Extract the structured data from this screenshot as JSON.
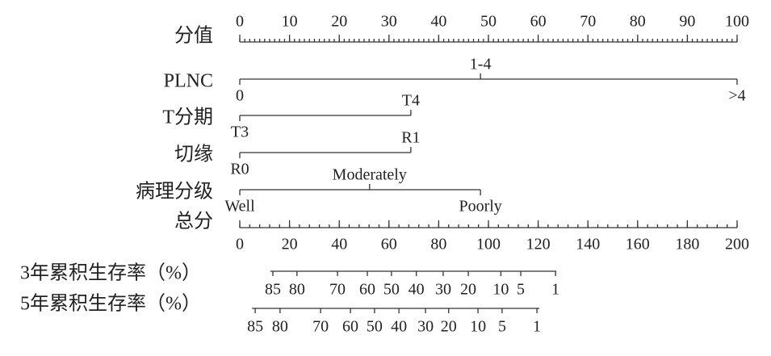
{
  "chart_data": {
    "type": "nomogram",
    "points_axis": {
      "name": "分值",
      "xlim": [
        0,
        100
      ],
      "xticks": [
        0,
        10,
        20,
        30,
        40,
        50,
        60,
        70,
        80,
        90,
        100
      ]
    },
    "variables": [
      {
        "name": "PLNC",
        "levels": [
          {
            "label": "0",
            "points": 0
          },
          {
            "label": "1-4",
            "points": 48.4
          },
          {
            "label": ">4",
            "points": 100
          }
        ]
      },
      {
        "name": "T分期",
        "levels": [
          {
            "label": "T3",
            "points": 0
          },
          {
            "label": "T4",
            "points": 34.4
          }
        ]
      },
      {
        "name": "切缘",
        "levels": [
          {
            "label": "R0",
            "points": 0
          },
          {
            "label": "R1",
            "points": 34.4
          }
        ]
      },
      {
        "name": "病理分级",
        "levels": [
          {
            "label": "Well",
            "points": 0
          },
          {
            "label": "Moderately",
            "points": 26.1
          },
          {
            "label": "Poorly",
            "points": 48.4
          }
        ]
      }
    ],
    "total_axis": {
      "name": "总分",
      "xlim": [
        0,
        200
      ],
      "xticks": [
        0,
        20,
        40,
        60,
        80,
        100,
        120,
        140,
        160,
        180,
        200
      ]
    },
    "outcomes": [
      {
        "name": "3年累积生存率（%）",
        "range": [
          12.3,
          127.3
        ],
        "ticks": [
          {
            "value": 13.3,
            "label": "85"
          },
          {
            "value": 23,
            "label": "80"
          },
          {
            "value": 39.3,
            "label": "70"
          },
          {
            "value": 51.3,
            "label": "60"
          },
          {
            "value": 61,
            "label": "50"
          },
          {
            "value": 71,
            "label": "40"
          },
          {
            "value": 81.8,
            "label": "30"
          },
          {
            "value": 91.9,
            "label": "20"
          },
          {
            "value": 105,
            "label": "10"
          },
          {
            "value": 113,
            "label": "5"
          },
          {
            "value": 127,
            "label": "1"
          }
        ]
      },
      {
        "name": "5年累积生存率（%）",
        "range": [
          4.9,
          120.5
        ],
        "ticks": [
          {
            "value": 6.2,
            "label": "85"
          },
          {
            "value": 16.2,
            "label": "80"
          },
          {
            "value": 32.5,
            "label": "70"
          },
          {
            "value": 44.5,
            "label": "60"
          },
          {
            "value": 54.2,
            "label": "50"
          },
          {
            "value": 64,
            "label": "40"
          },
          {
            "value": 74.7,
            "label": "30"
          },
          {
            "value": 84,
            "label": "20"
          },
          {
            "value": 95.8,
            "label": "10"
          },
          {
            "value": 105.5,
            "label": "5"
          },
          {
            "value": 119.5,
            "label": "1"
          }
        ]
      }
    ]
  }
}
